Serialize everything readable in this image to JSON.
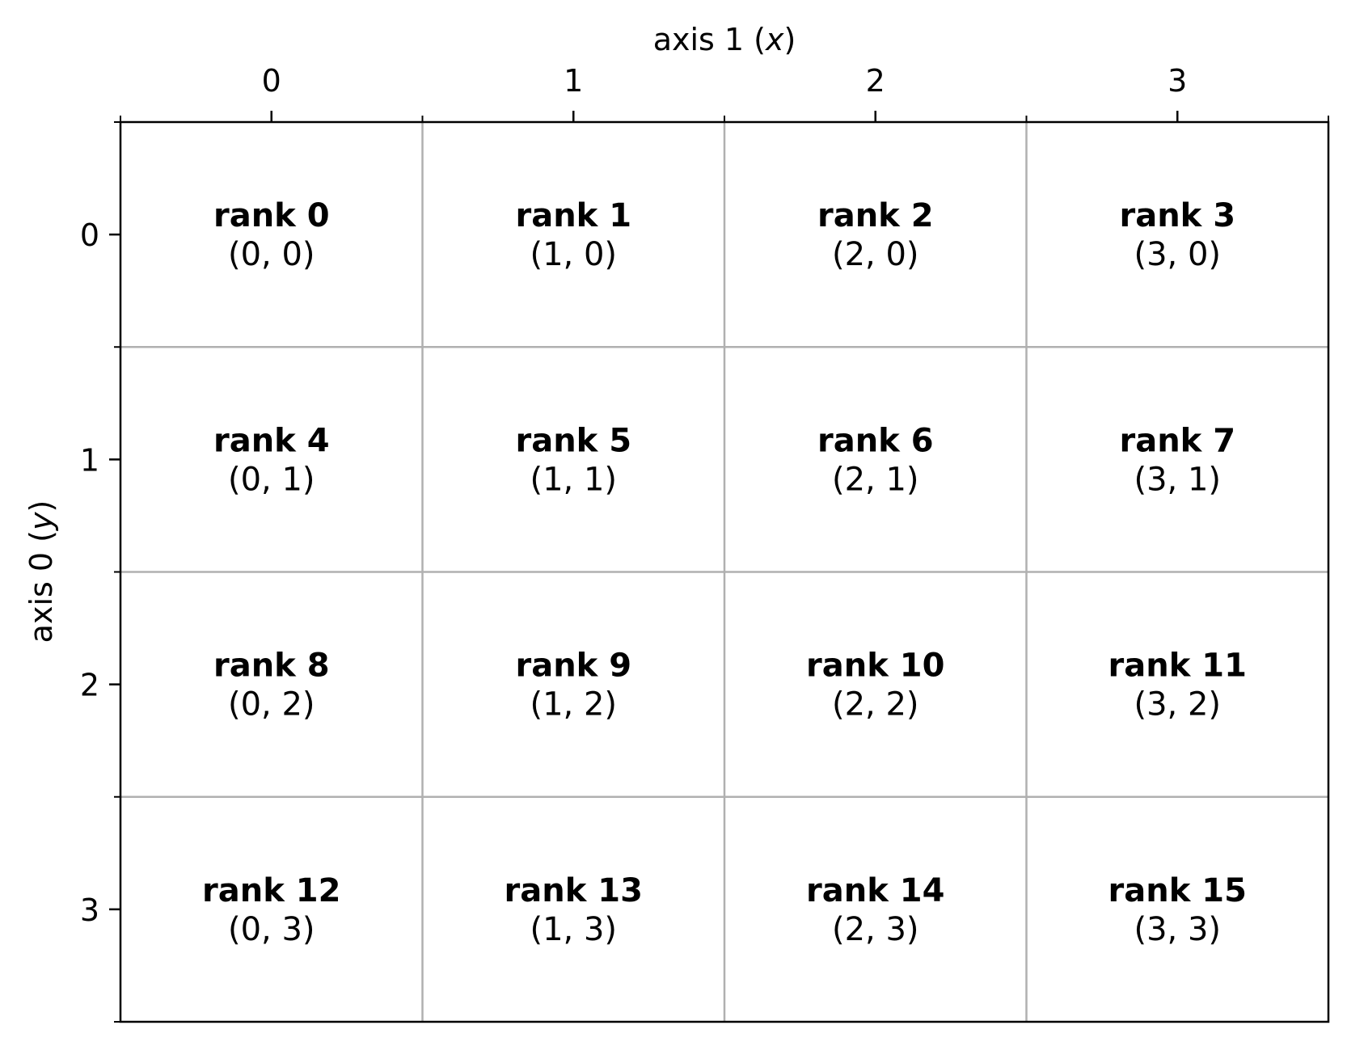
{
  "axes": {
    "x_label_prefix": "axis 1 (",
    "x_label_var": "x",
    "x_label_suffix": ")",
    "y_label_prefix": "axis 0 (",
    "y_label_var": "y",
    "y_label_suffix": ")",
    "x_ticks": [
      "0",
      "1",
      "2",
      "3"
    ],
    "y_ticks": [
      "0",
      "1",
      "2",
      "3"
    ]
  },
  "grid": {
    "columns": 4,
    "rows": 4,
    "cells": [
      {
        "rank": "rank 0",
        "coord": "(0, 0)"
      },
      {
        "rank": "rank 1",
        "coord": "(1, 0)"
      },
      {
        "rank": "rank 2",
        "coord": "(2, 0)"
      },
      {
        "rank": "rank 3",
        "coord": "(3, 0)"
      },
      {
        "rank": "rank 4",
        "coord": "(0, 1)"
      },
      {
        "rank": "rank 5",
        "coord": "(1, 1)"
      },
      {
        "rank": "rank 6",
        "coord": "(2, 1)"
      },
      {
        "rank": "rank 7",
        "coord": "(3, 1)"
      },
      {
        "rank": "rank 8",
        "coord": "(0, 2)"
      },
      {
        "rank": "rank 9",
        "coord": "(1, 2)"
      },
      {
        "rank": "rank 10",
        "coord": "(2, 2)"
      },
      {
        "rank": "rank 11",
        "coord": "(3, 2)"
      },
      {
        "rank": "rank 12",
        "coord": "(0, 3)"
      },
      {
        "rank": "rank 13",
        "coord": "(1, 3)"
      },
      {
        "rank": "rank 14",
        "coord": "(2, 3)"
      },
      {
        "rank": "rank 15",
        "coord": "(3, 3)"
      }
    ]
  },
  "colors": {
    "frame": "#000000",
    "grid_line": "#b0b0b0",
    "text": "#000000",
    "background": "#ffffff"
  }
}
